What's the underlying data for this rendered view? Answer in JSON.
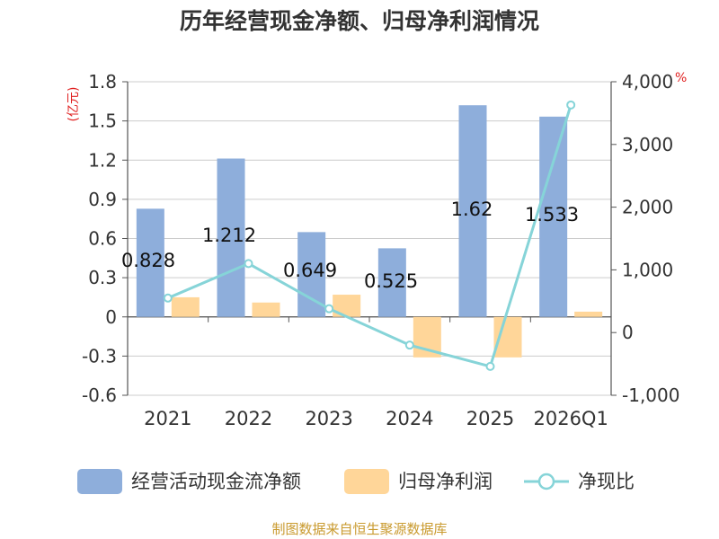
{
  "chart_data": {
    "type": "bar",
    "title": "历年经营现金净额、归母净利润情况",
    "categories": [
      "2021",
      "2022",
      "2023",
      "2024",
      "2025",
      "2026Q1"
    ],
    "series": [
      {
        "name": "经营活动现金流净额",
        "kind": "bar",
        "axis": "left",
        "color": "#8eaedb",
        "values": [
          0.828,
          1.212,
          0.649,
          0.525,
          1.62,
          1.533
        ]
      },
      {
        "name": "归母净利润",
        "kind": "bar",
        "axis": "left",
        "color": "#ffd699",
        "values": [
          0.15,
          0.11,
          0.17,
          -0.31,
          -0.31,
          0.04
        ]
      },
      {
        "name": "净现比",
        "kind": "line",
        "axis": "right",
        "color": "#86d4d8",
        "values": [
          550,
          1100,
          380,
          -200,
          -540,
          3630
        ]
      }
    ],
    "data_labels": [
      "0.828",
      "1.212",
      "0.649",
      "0.525",
      "1.62",
      "1.533"
    ],
    "y_left": {
      "label": "(亿元)",
      "min": -0.6,
      "max": 1.8,
      "ticks": [
        "1.8",
        "1.5",
        "1.2",
        "0.9",
        "0.6",
        "0.3",
        "0",
        "-0.3",
        "-0.6"
      ],
      "tick_values": [
        1.8,
        1.5,
        1.2,
        0.9,
        0.6,
        0.3,
        0,
        -0.3,
        -0.6
      ]
    },
    "y_right": {
      "label": "%",
      "min": -1000,
      "max": 4000,
      "ticks": [
        "4,000",
        "3,000",
        "2,000",
        "1,000",
        "0",
        "-1,000"
      ],
      "tick_values": [
        4000,
        3000,
        2000,
        1000,
        0,
        -1000
      ]
    },
    "grid": true,
    "legend_position": "bottom"
  },
  "source": "制图数据来自恒生聚源数据库"
}
